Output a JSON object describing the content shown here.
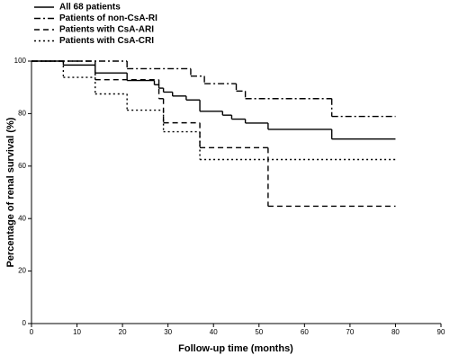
{
  "chart_data": {
    "type": "step",
    "xlabel": "Follow-up time (months)",
    "ylabel": "Percentage of renal survival (%)",
    "xlim": [
      0,
      90
    ],
    "xticks": [
      0,
      10,
      20,
      30,
      40,
      50,
      60,
      70,
      80,
      90
    ],
    "ylim": [
      0,
      100
    ],
    "yticks": [
      0,
      20,
      40,
      60,
      80,
      100
    ],
    "grid": false,
    "legend": "upper left",
    "series": [
      {
        "name": "All 68 patients",
        "color": "#000000",
        "dash": "none",
        "x": [
          0,
          7,
          14,
          21,
          27,
          28,
          29,
          31,
          34,
          37,
          42,
          44,
          47,
          52,
          66,
          80
        ],
        "values": [
          100,
          98.5,
          95.5,
          92.6,
          91,
          89.7,
          88.2,
          86.7,
          85.2,
          80.9,
          79.4,
          77.9,
          76.4,
          74,
          70.3,
          70.3
        ]
      },
      {
        "name": "Patients of non-CsA-RI",
        "color": "#000000",
        "dash": "7,3,2,3",
        "x": [
          0,
          21,
          35,
          38,
          45,
          47,
          66,
          80
        ],
        "values": [
          100,
          97.1,
          94.3,
          91.4,
          88.6,
          85.7,
          78.9,
          78.9
        ]
      },
      {
        "name": "Patients with CsA-ARI",
        "color": "#000000",
        "dash": "6,4",
        "x": [
          0,
          14,
          28,
          29,
          37,
          52,
          80
        ],
        "values": [
          100,
          92.9,
          85.7,
          76.5,
          67,
          44.7,
          44.7
        ]
      },
      {
        "name": "Patients with CsA-CRI",
        "color": "#000000",
        "dash": "2,3",
        "x": [
          0,
          7,
          14,
          21,
          29,
          37,
          80
        ],
        "values": [
          100,
          93.8,
          87.5,
          81.3,
          73.1,
          62.5,
          62.5
        ]
      }
    ]
  }
}
